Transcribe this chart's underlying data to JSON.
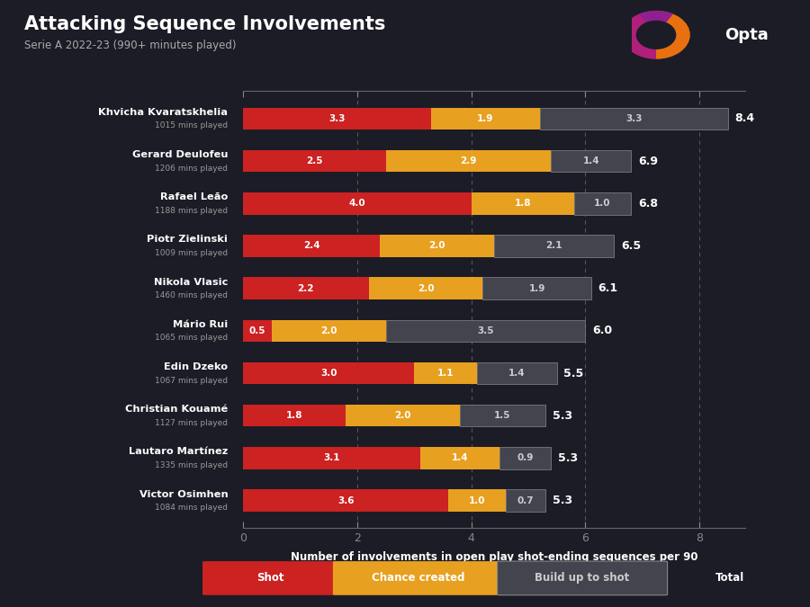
{
  "title": "Attacking Sequence Involvements",
  "subtitle": "Serie A 2022-23 (990+ minutes played)",
  "xlabel": "Number of involvements in open play shot-ending sequences per 90",
  "bg_color": "#1c1c26",
  "players": [
    {
      "name": "Khvicha Kvaratskhelia",
      "mins": "1015 mins played",
      "shot": 3.3,
      "chance": 1.9,
      "buildup": 3.3,
      "total": 8.4
    },
    {
      "name": "Gerard Deulofeu",
      "mins": "1206 mins played",
      "shot": 2.5,
      "chance": 2.9,
      "buildup": 1.4,
      "total": 6.9
    },
    {
      "name": "Rafael Leão",
      "mins": "1188 mins played",
      "shot": 4.0,
      "chance": 1.8,
      "buildup": 1.0,
      "total": 6.8
    },
    {
      "name": "Piotr Zielinski",
      "mins": "1009 mins played",
      "shot": 2.4,
      "chance": 2.0,
      "buildup": 2.1,
      "total": 6.5
    },
    {
      "name": "Nikola Vlasic",
      "mins": "1460 mins played",
      "shot": 2.2,
      "chance": 2.0,
      "buildup": 1.9,
      "total": 6.1
    },
    {
      "name": "Mário Rui",
      "mins": "1065 mins played",
      "shot": 0.5,
      "chance": 2.0,
      "buildup": 3.5,
      "total": 6.0
    },
    {
      "name": "Edin Dzeko",
      "mins": "1067 mins played",
      "shot": 3.0,
      "chance": 1.1,
      "buildup": 1.4,
      "total": 5.5
    },
    {
      "name": "Christian Kouamé",
      "mins": "1127 mins played",
      "shot": 1.8,
      "chance": 2.0,
      "buildup": 1.5,
      "total": 5.3
    },
    {
      "name": "Lautaro Martínez",
      "mins": "1335 mins played",
      "shot": 3.1,
      "chance": 1.4,
      "buildup": 0.9,
      "total": 5.3
    },
    {
      "name": "Victor Osimhen",
      "mins": "1084 mins played",
      "shot": 3.6,
      "chance": 1.0,
      "buildup": 0.7,
      "total": 5.3
    }
  ],
  "color_shot": "#cc2222",
  "color_chance": "#e8a020",
  "color_buildup": "#44444f",
  "bar_height": 0.52,
  "xlim": [
    0,
    8.8
  ],
  "xticks": [
    0,
    2,
    4,
    6,
    8
  ],
  "legend_shot_label": "Shot",
  "legend_chance_label": "Chance created",
  "legend_buildup_label": "Build up to shot",
  "legend_total_label": "Total"
}
